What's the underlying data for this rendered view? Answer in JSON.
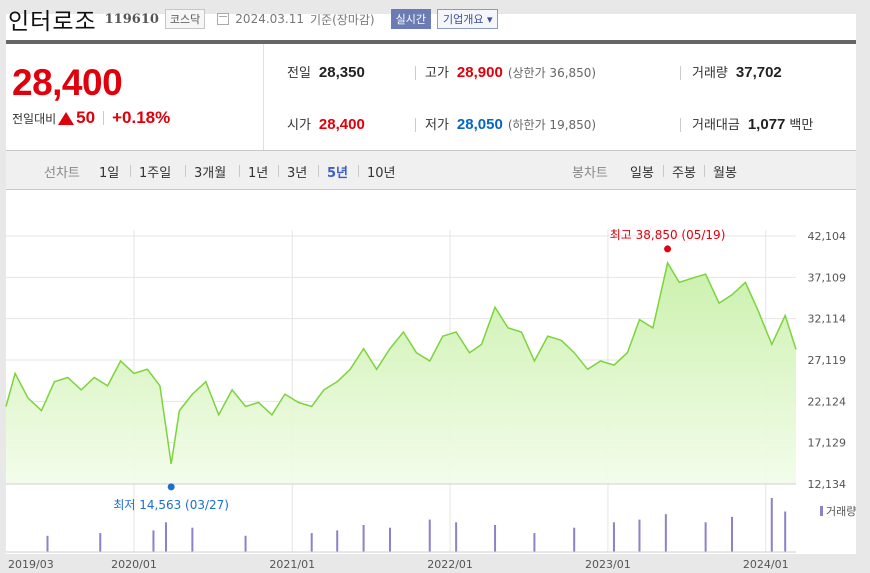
{
  "header": {
    "company": "인터로조",
    "code": "119610",
    "market": "코스닥",
    "date": "2024.03.11",
    "basis": "기준(장마감)",
    "realtime_label": "실시간",
    "corp_button": "기업개요 ▾"
  },
  "price": {
    "current": "28,400",
    "prev_label": "전일대비",
    "change": "50",
    "change_pct": "+0.18%",
    "up_color": "#e0000c",
    "down_color": "#0a64c8"
  },
  "stats": {
    "prev_close": {
      "label": "전일",
      "value": "28,350"
    },
    "high": {
      "label": "고가",
      "value": "28,900",
      "sub": "(상한가 36,850)"
    },
    "volume": {
      "label": "거래량",
      "value": "37,702"
    },
    "open": {
      "label": "시가",
      "value": "28,400"
    },
    "low": {
      "label": "저가",
      "value": "28,050",
      "sub": "(하한가 19,850)"
    },
    "turnover": {
      "label": "거래대금",
      "value": "1,077",
      "unit": "백만"
    }
  },
  "tabs": {
    "line_label": "선차트",
    "line": [
      "1일",
      "1주일",
      "3개월",
      "1년",
      "3년",
      "5년",
      "10년"
    ],
    "line_selected": "5년",
    "candle_label": "봉차트",
    "candle": [
      "일봉",
      "주봉",
      "월봉"
    ]
  },
  "chart_data": {
    "type": "area",
    "x_tick_labels": [
      "2019/03",
      "2020/01",
      "2021/01",
      "2022/01",
      "2023/01",
      "2024/01"
    ],
    "y_tick_labels": [
      "42,104",
      "37,109",
      "32,114",
      "27,119",
      "22,124",
      "17,129",
      "12,134"
    ],
    "ylim": [
      12134,
      42104
    ],
    "xlim": [
      "2019-03-11",
      "2024-03-11"
    ],
    "grid": true,
    "max_annotation": "최고 38,850 (05/19)",
    "min_annotation": "최저 14,563 (03/27)",
    "max_point": {
      "x": "2023-05-19",
      "y": 38850
    },
    "min_point": {
      "x": "2020-03-27",
      "y": 14563
    },
    "volume_legend": "거래량",
    "line_color": "#7cd43c",
    "fill_color": "#c8f0a8",
    "max_color": "#e0000c",
    "min_color": "#1a6fd0",
    "volume_color": "#8c82c8",
    "series": [
      {
        "x": [
          "2019-03-11",
          "2019-04-01",
          "2019-05-01",
          "2019-06-01",
          "2019-07-01",
          "2019-08-01",
          "2019-09-01",
          "2019-10-01",
          "2019-11-01",
          "2019-12-01",
          "2020-01-01",
          "2020-02-01",
          "2020-03-01",
          "2020-03-27",
          "2020-04-15",
          "2020-05-15",
          "2020-06-15",
          "2020-07-15",
          "2020-08-15",
          "2020-09-15",
          "2020-10-15",
          "2020-11-15",
          "2020-12-15",
          "2021-01-15",
          "2021-02-15",
          "2021-03-15",
          "2021-04-15",
          "2021-05-15",
          "2021-06-15",
          "2021-07-15",
          "2021-08-15",
          "2021-09-15",
          "2021-10-15",
          "2021-11-15",
          "2021-12-15",
          "2022-01-15",
          "2022-02-15",
          "2022-03-15",
          "2022-04-15",
          "2022-05-15",
          "2022-06-15",
          "2022-07-15",
          "2022-08-15",
          "2022-09-15",
          "2022-10-15",
          "2022-11-15",
          "2022-12-15",
          "2023-01-15",
          "2023-02-15",
          "2023-03-15",
          "2023-04-15",
          "2023-05-19",
          "2023-06-15",
          "2023-07-15",
          "2023-08-15",
          "2023-09-15",
          "2023-10-15",
          "2023-11-15",
          "2023-12-15",
          "2024-01-15",
          "2024-02-15",
          "2024-03-11"
        ],
        "y": [
          21500,
          25500,
          22500,
          21000,
          24500,
          25000,
          23500,
          25000,
          24000,
          27000,
          25500,
          26000,
          24000,
          14563,
          21000,
          23000,
          24500,
          20500,
          23500,
          21500,
          22000,
          20500,
          23000,
          22000,
          21500,
          23500,
          24500,
          26000,
          28500,
          26000,
          28500,
          30500,
          28000,
          27000,
          30000,
          30500,
          28000,
          29000,
          33500,
          31000,
          30500,
          27000,
          30000,
          29500,
          28000,
          26000,
          27000,
          26500,
          28000,
          32000,
          31000,
          38850,
          36500,
          37000,
          37500,
          34000,
          35000,
          36500,
          33000,
          29000,
          32500,
          28400
        ]
      }
    ],
    "volume": {
      "x": [
        "2019-06",
        "2019-10",
        "2020-02",
        "2020-03",
        "2020-05",
        "2020-09",
        "2021-02",
        "2021-04",
        "2021-06",
        "2021-08",
        "2021-11",
        "2022-01",
        "2022-04",
        "2022-07",
        "2022-10",
        "2023-01",
        "2023-03",
        "2023-05",
        "2023-08",
        "2023-10",
        "2024-01",
        "2024-02"
      ],
      "y": [
        30,
        35,
        40,
        55,
        45,
        30,
        35,
        40,
        50,
        45,
        60,
        55,
        50,
        35,
        45,
        55,
        60,
        70,
        55,
        65,
        100,
        75
      ]
    }
  }
}
